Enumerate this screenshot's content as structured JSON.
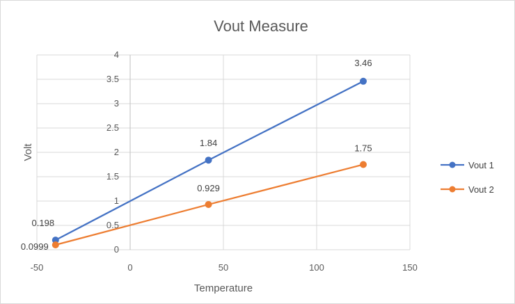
{
  "chart_data": {
    "type": "scatter",
    "title": "Vout Measure",
    "xlabel": "Temperature",
    "ylabel": "Volt",
    "xlim": [
      -50,
      150
    ],
    "ylim": [
      0,
      4
    ],
    "x_ticks": [
      -50,
      0,
      50,
      100,
      150
    ],
    "y_ticks": [
      0,
      0.5,
      1,
      1.5,
      2,
      2.5,
      3,
      3.5,
      4
    ],
    "x_tick_labels": [
      "-50",
      "0",
      "50",
      "100",
      "150"
    ],
    "y_tick_labels": [
      "0",
      "0.5",
      "1",
      "1.5",
      "2",
      "2.5",
      "3",
      "3.5",
      "4"
    ],
    "grid": true,
    "legend_position": "right",
    "series": [
      {
        "name": "Vout 1",
        "color": "#4472c4",
        "marker": "circle",
        "points": [
          {
            "x": -40,
            "y": 0.198,
            "label": "0.198"
          },
          {
            "x": 42,
            "y": 1.84,
            "label": "1.84"
          },
          {
            "x": 125,
            "y": 3.46,
            "label": "3.46"
          }
        ]
      },
      {
        "name": "Vout 2",
        "color": "#ed7d31",
        "marker": "circle",
        "points": [
          {
            "x": -40,
            "y": 0.0999,
            "label": "0.0999"
          },
          {
            "x": 42,
            "y": 0.929,
            "label": "0.929"
          },
          {
            "x": 125,
            "y": 1.75,
            "label": "1.75"
          }
        ]
      }
    ]
  }
}
